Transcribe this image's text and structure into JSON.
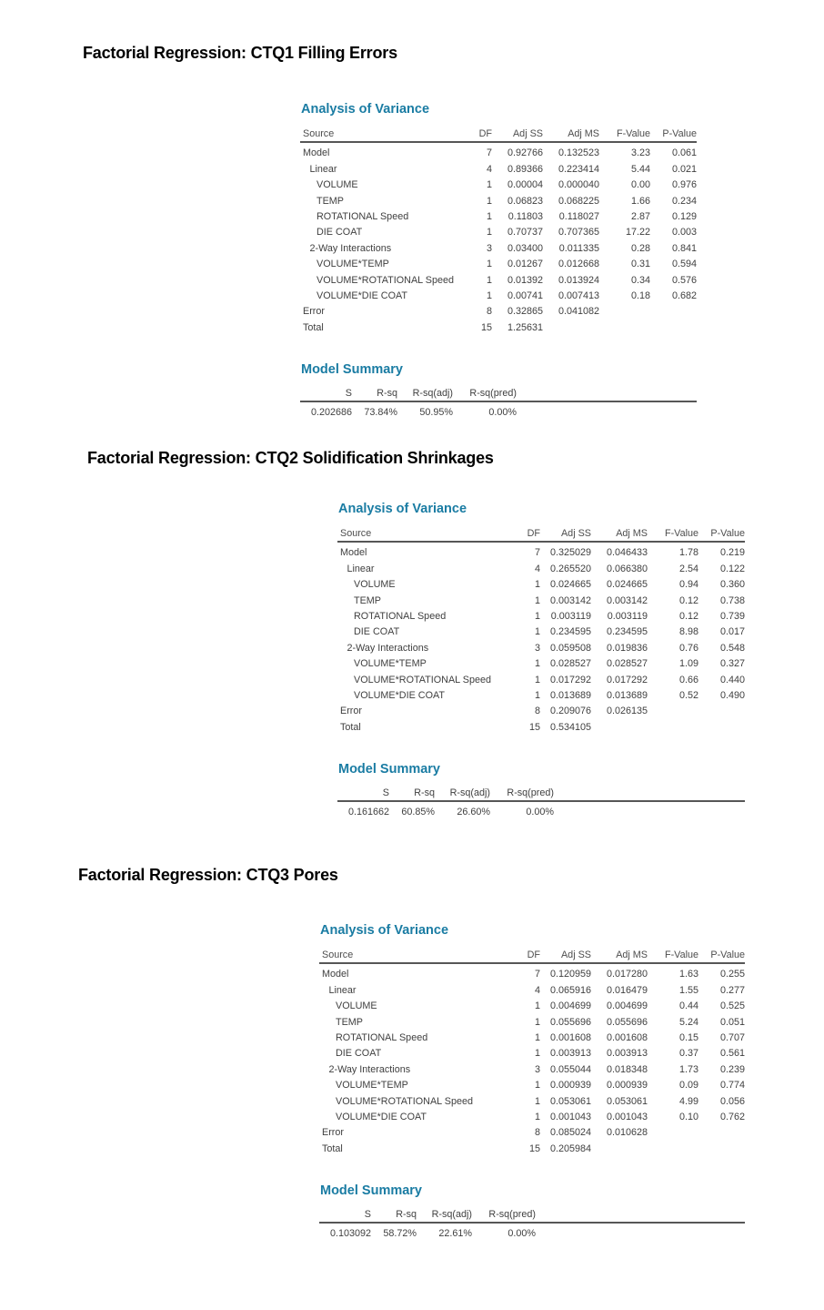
{
  "colors": {
    "heading_teal": "#1a7ca3",
    "title_black": "#000000",
    "table_text": "#3f3f3f",
    "rule_gray": "#565656",
    "background": "#ffffff"
  },
  "sections": [
    {
      "title": "Factorial Regression: CTQ1 Filling Errors",
      "anova_heading": "Analysis of Variance",
      "anova": {
        "columns": [
          "Source",
          "DF",
          "Adj SS",
          "Adj MS",
          "F-Value",
          "P-Value"
        ],
        "rows": [
          {
            "source": "Model",
            "indent": 0,
            "df": "7",
            "adj_ss": "0.92766",
            "adj_ms": "0.132523",
            "f": "3.23",
            "p": "0.061"
          },
          {
            "source": "Linear",
            "indent": 1,
            "df": "4",
            "adj_ss": "0.89366",
            "adj_ms": "0.223414",
            "f": "5.44",
            "p": "0.021"
          },
          {
            "source": "VOLUME",
            "indent": 2,
            "df": "1",
            "adj_ss": "0.00004",
            "adj_ms": "0.000040",
            "f": "0.00",
            "p": "0.976"
          },
          {
            "source": "TEMP",
            "indent": 2,
            "df": "1",
            "adj_ss": "0.06823",
            "adj_ms": "0.068225",
            "f": "1.66",
            "p": "0.234"
          },
          {
            "source": "ROTATIONAL Speed",
            "indent": 2,
            "df": "1",
            "adj_ss": "0.11803",
            "adj_ms": "0.118027",
            "f": "2.87",
            "p": "0.129"
          },
          {
            "source": "DIE COAT",
            "indent": 2,
            "df": "1",
            "adj_ss": "0.70737",
            "adj_ms": "0.707365",
            "f": "17.22",
            "p": "0.003"
          },
          {
            "source": "2-Way Interactions",
            "indent": 1,
            "df": "3",
            "adj_ss": "0.03400",
            "adj_ms": "0.011335",
            "f": "0.28",
            "p": "0.841"
          },
          {
            "source": "VOLUME*TEMP",
            "indent": 2,
            "df": "1",
            "adj_ss": "0.01267",
            "adj_ms": "0.012668",
            "f": "0.31",
            "p": "0.594"
          },
          {
            "source": "VOLUME*ROTATIONAL Speed",
            "indent": 2,
            "df": "1",
            "adj_ss": "0.01392",
            "adj_ms": "0.013924",
            "f": "0.34",
            "p": "0.576"
          },
          {
            "source": "VOLUME*DIE COAT",
            "indent": 2,
            "df": "1",
            "adj_ss": "0.00741",
            "adj_ms": "0.007413",
            "f": "0.18",
            "p": "0.682"
          },
          {
            "source": "Error",
            "indent": 0,
            "df": "8",
            "adj_ss": "0.32865",
            "adj_ms": "0.041082",
            "f": "",
            "p": ""
          },
          {
            "source": "Total",
            "indent": 0,
            "df": "15",
            "adj_ss": "1.25631",
            "adj_ms": "",
            "f": "",
            "p": ""
          }
        ]
      },
      "summary_heading": "Model Summary",
      "summary": {
        "columns": [
          "S",
          "R-sq",
          "R-sq(adj)",
          "R-sq(pred)"
        ],
        "values": [
          "0.202686",
          "73.84%",
          "50.95%",
          "0.00%"
        ]
      }
    },
    {
      "title": "Factorial Regression: CTQ2 Solidification Shrinkages",
      "anova_heading": "Analysis of Variance",
      "anova": {
        "columns": [
          "Source",
          "DF",
          "Adj SS",
          "Adj MS",
          "F-Value",
          "P-Value"
        ],
        "rows": [
          {
            "source": "Model",
            "indent": 0,
            "df": "7",
            "adj_ss": "0.325029",
            "adj_ms": "0.046433",
            "f": "1.78",
            "p": "0.219"
          },
          {
            "source": "Linear",
            "indent": 1,
            "df": "4",
            "adj_ss": "0.265520",
            "adj_ms": "0.066380",
            "f": "2.54",
            "p": "0.122"
          },
          {
            "source": "VOLUME",
            "indent": 2,
            "df": "1",
            "adj_ss": "0.024665",
            "adj_ms": "0.024665",
            "f": "0.94",
            "p": "0.360"
          },
          {
            "source": "TEMP",
            "indent": 2,
            "df": "1",
            "adj_ss": "0.003142",
            "adj_ms": "0.003142",
            "f": "0.12",
            "p": "0.738"
          },
          {
            "source": "ROTATIONAL Speed",
            "indent": 2,
            "df": "1",
            "adj_ss": "0.003119",
            "adj_ms": "0.003119",
            "f": "0.12",
            "p": "0.739"
          },
          {
            "source": "DIE COAT",
            "indent": 2,
            "df": "1",
            "adj_ss": "0.234595",
            "adj_ms": "0.234595",
            "f": "8.98",
            "p": "0.017"
          },
          {
            "source": "2-Way Interactions",
            "indent": 1,
            "df": "3",
            "adj_ss": "0.059508",
            "adj_ms": "0.019836",
            "f": "0.76",
            "p": "0.548"
          },
          {
            "source": "VOLUME*TEMP",
            "indent": 2,
            "df": "1",
            "adj_ss": "0.028527",
            "adj_ms": "0.028527",
            "f": "1.09",
            "p": "0.327"
          },
          {
            "source": "VOLUME*ROTATIONAL Speed",
            "indent": 2,
            "df": "1",
            "adj_ss": "0.017292",
            "adj_ms": "0.017292",
            "f": "0.66",
            "p": "0.440"
          },
          {
            "source": "VOLUME*DIE COAT",
            "indent": 2,
            "df": "1",
            "adj_ss": "0.013689",
            "adj_ms": "0.013689",
            "f": "0.52",
            "p": "0.490"
          },
          {
            "source": "Error",
            "indent": 0,
            "df": "8",
            "adj_ss": "0.209076",
            "adj_ms": "0.026135",
            "f": "",
            "p": ""
          },
          {
            "source": "Total",
            "indent": 0,
            "df": "15",
            "adj_ss": "0.534105",
            "adj_ms": "",
            "f": "",
            "p": ""
          }
        ]
      },
      "summary_heading": "Model Summary",
      "summary": {
        "columns": [
          "S",
          "R-sq",
          "R-sq(adj)",
          "R-sq(pred)"
        ],
        "values": [
          "0.161662",
          "60.85%",
          "26.60%",
          "0.00%"
        ]
      }
    },
    {
      "title": "Factorial Regression: CTQ3 Pores",
      "anova_heading": "Analysis of Variance",
      "anova": {
        "columns": [
          "Source",
          "DF",
          "Adj SS",
          "Adj MS",
          "F-Value",
          "P-Value"
        ],
        "rows": [
          {
            "source": "Model",
            "indent": 0,
            "df": "7",
            "adj_ss": "0.120959",
            "adj_ms": "0.017280",
            "f": "1.63",
            "p": "0.255"
          },
          {
            "source": "Linear",
            "indent": 1,
            "df": "4",
            "adj_ss": "0.065916",
            "adj_ms": "0.016479",
            "f": "1.55",
            "p": "0.277"
          },
          {
            "source": "VOLUME",
            "indent": 2,
            "df": "1",
            "adj_ss": "0.004699",
            "adj_ms": "0.004699",
            "f": "0.44",
            "p": "0.525"
          },
          {
            "source": "TEMP",
            "indent": 2,
            "df": "1",
            "adj_ss": "0.055696",
            "adj_ms": "0.055696",
            "f": "5.24",
            "p": "0.051"
          },
          {
            "source": "ROTATIONAL Speed",
            "indent": 2,
            "df": "1",
            "adj_ss": "0.001608",
            "adj_ms": "0.001608",
            "f": "0.15",
            "p": "0.707"
          },
          {
            "source": "DIE COAT",
            "indent": 2,
            "df": "1",
            "adj_ss": "0.003913",
            "adj_ms": "0.003913",
            "f": "0.37",
            "p": "0.561"
          },
          {
            "source": "2-Way Interactions",
            "indent": 1,
            "df": "3",
            "adj_ss": "0.055044",
            "adj_ms": "0.018348",
            "f": "1.73",
            "p": "0.239"
          },
          {
            "source": "VOLUME*TEMP",
            "indent": 2,
            "df": "1",
            "adj_ss": "0.000939",
            "adj_ms": "0.000939",
            "f": "0.09",
            "p": "0.774"
          },
          {
            "source": "VOLUME*ROTATIONAL Speed",
            "indent": 2,
            "df": "1",
            "adj_ss": "0.053061",
            "adj_ms": "0.053061",
            "f": "4.99",
            "p": "0.056"
          },
          {
            "source": "VOLUME*DIE COAT",
            "indent": 2,
            "df": "1",
            "adj_ss": "0.001043",
            "adj_ms": "0.001043",
            "f": "0.10",
            "p": "0.762"
          },
          {
            "source": "Error",
            "indent": 0,
            "df": "8",
            "adj_ss": "0.085024",
            "adj_ms": "0.010628",
            "f": "",
            "p": ""
          },
          {
            "source": "Total",
            "indent": 0,
            "df": "15",
            "adj_ss": "0.205984",
            "adj_ms": "",
            "f": "",
            "p": ""
          }
        ]
      },
      "summary_heading": "Model Summary",
      "summary": {
        "columns": [
          "S",
          "R-sq",
          "R-sq(adj)",
          "R-sq(pred)"
        ],
        "values": [
          "0.103092",
          "58.72%",
          "22.61%",
          "0.00%"
        ]
      }
    }
  ]
}
